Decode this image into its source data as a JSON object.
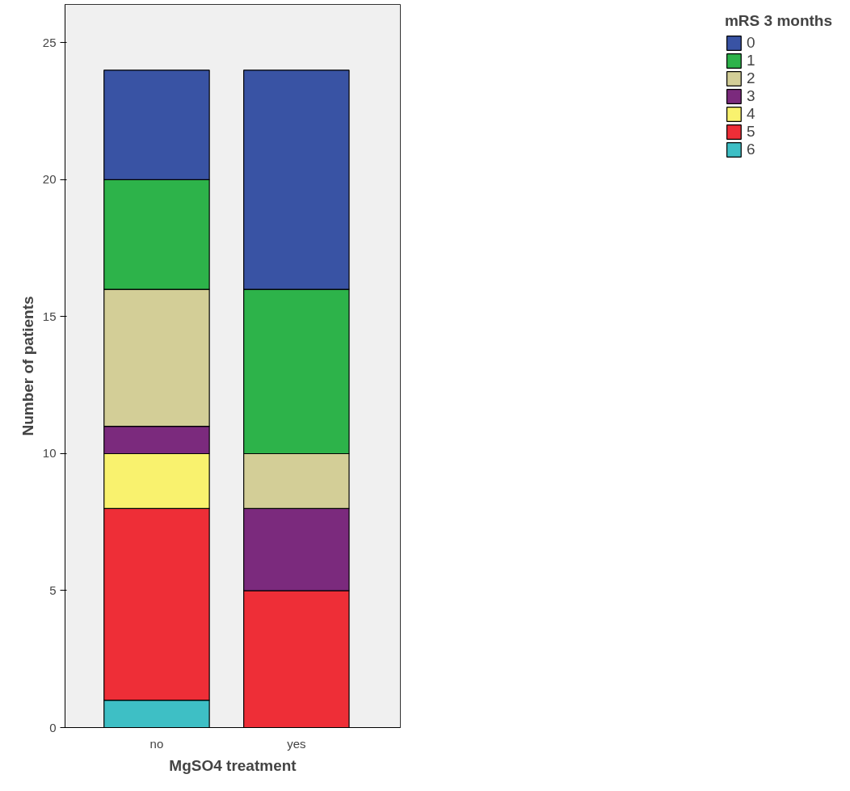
{
  "chart_data": {
    "type": "bar",
    "stacked": true,
    "xlabel": "MgSO4 treatment",
    "ylabel": "Number of patients",
    "legend_title": "mRS 3 months",
    "legend": "right",
    "grid": false,
    "categories": [
      "no",
      "yes"
    ],
    "ylim": [
      0,
      26.4
    ],
    "yticks": [
      0,
      5,
      10,
      15,
      20,
      25
    ],
    "series": [
      {
        "name": "6",
        "color": "#3ebfc5",
        "values": [
          1,
          0
        ]
      },
      {
        "name": "5",
        "color": "#ee2e37",
        "values": [
          7,
          5
        ]
      },
      {
        "name": "4",
        "color": "#f9f26e",
        "values": [
          2,
          0
        ]
      },
      {
        "name": "3",
        "color": "#7b2a7d",
        "values": [
          1,
          3
        ]
      },
      {
        "name": "2",
        "color": "#d3ce97",
        "values": [
          5,
          2
        ]
      },
      {
        "name": "1",
        "color": "#2db34a",
        "values": [
          4,
          6
        ]
      },
      {
        "name": "0",
        "color": "#3953a4",
        "values": [
          4,
          8
        ]
      }
    ]
  }
}
